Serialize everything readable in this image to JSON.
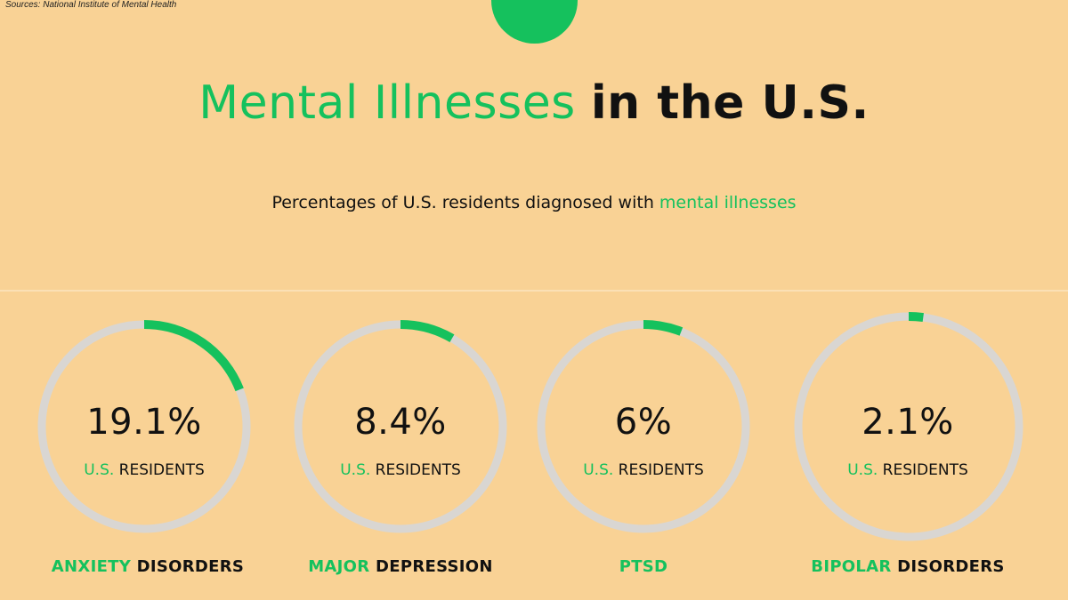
{
  "source": "Sources: National Institute of Mental Health",
  "title": {
    "highlight": "Mental Illnesses",
    "rest": "in the U.S."
  },
  "subtitle": {
    "text": "Percentages of U.S. residents diagnosed with",
    "highlight": "mental  illnesses"
  },
  "colors": {
    "accent": "#15c15d",
    "ring_track": "#d9d6d2",
    "background": "#f9d295"
  },
  "chart_data": {
    "type": "donut",
    "unit": "%",
    "items": [
      {
        "value": 19.1,
        "label": "19.1%",
        "sub_highlight": "U.S.",
        "sub_rest": "RESIDENTS",
        "category_highlight": "ANXIETY",
        "category_rest": "DISORDERS"
      },
      {
        "value": 8.4,
        "label": "8.4%",
        "sub_highlight": "U.S.",
        "sub_rest": "RESIDENTS",
        "category_highlight": "MAJOR",
        "category_rest": "DEPRESSION"
      },
      {
        "value": 6,
        "label": "6%",
        "sub_highlight": "U.S.",
        "sub_rest": "RESIDENTS",
        "category_highlight": "PTSD",
        "category_rest": ""
      },
      {
        "value": 2.1,
        "label": "2.1%",
        "sub_highlight": "U.S.",
        "sub_rest": "RESIDENTS",
        "category_highlight": "BIPOLAR",
        "category_rest": "DISORDERS"
      }
    ]
  }
}
